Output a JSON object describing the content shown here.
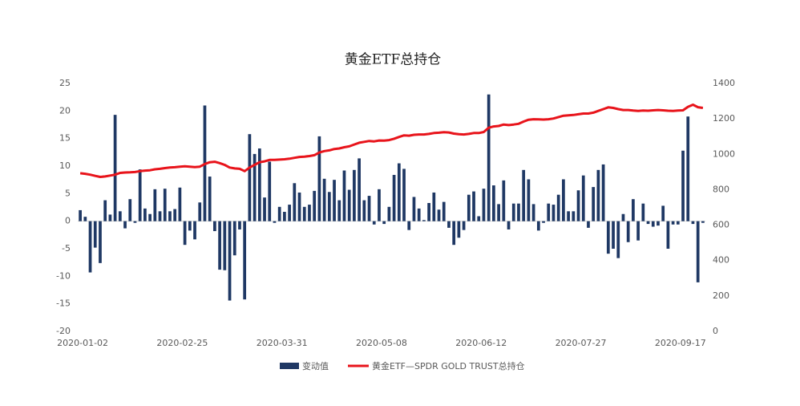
{
  "chart_data": {
    "type": "bar-line",
    "title": "黄金ETF总持仓",
    "categories": [
      "2020-01-02",
      null,
      null,
      null,
      null,
      null,
      null,
      null,
      null,
      null,
      null,
      null,
      null,
      null,
      null,
      null,
      null,
      null,
      null,
      null,
      "2020-02-25",
      null,
      null,
      null,
      null,
      null,
      null,
      null,
      null,
      null,
      null,
      null,
      null,
      null,
      null,
      null,
      null,
      null,
      null,
      null,
      "2020-03-31",
      null,
      null,
      null,
      null,
      null,
      null,
      null,
      null,
      null,
      null,
      null,
      null,
      null,
      null,
      null,
      null,
      null,
      null,
      null,
      "2020-05-08",
      null,
      null,
      null,
      null,
      null,
      null,
      null,
      null,
      null,
      null,
      null,
      null,
      null,
      null,
      null,
      null,
      null,
      null,
      null,
      "2020-06-12",
      null,
      null,
      null,
      null,
      null,
      null,
      null,
      null,
      null,
      null,
      null,
      null,
      null,
      null,
      null,
      null,
      null,
      null,
      null,
      "2020-07-27",
      null,
      null,
      null,
      null,
      null,
      null,
      null,
      null,
      null,
      null,
      null,
      null,
      null,
      null,
      null,
      null,
      null,
      null,
      null,
      "2020-09-17",
      null,
      null,
      null,
      null,
      null
    ],
    "series": [
      {
        "name": "变动值",
        "type": "bar",
        "color": "#1f3864",
        "values": [
          2,
          0.8,
          -9.3,
          -4.8,
          -7.6,
          3.8,
          1.2,
          19.3,
          1.8,
          -1.3,
          4,
          -0.3,
          9.4,
          2.3,
          1.3,
          5.8,
          1.8,
          5.9,
          1.8,
          2.2,
          6.1,
          -4.3,
          -1.7,
          -3.3,
          3.4,
          21,
          8.1,
          -1.8,
          -8.8,
          -8.9,
          -14.4,
          -6.2,
          -1.5,
          -14.2,
          15.8,
          12.2,
          13.2,
          4.3,
          10.8,
          -0.3,
          2.6,
          1.7,
          3,
          6.9,
          5.2,
          2.6,
          3,
          5.5,
          15.4,
          7.7,
          5.3,
          7.5,
          3.8,
          9.2,
          5.7,
          9.3,
          11.4,
          3.8,
          4.6,
          -0.6,
          5.8,
          -0.5,
          2.6,
          8.4,
          10.5,
          9.5,
          -1.6,
          4.4,
          2.3,
          0.2,
          3.3,
          5.2,
          2.1,
          3.5,
          -1.2,
          -4.3,
          -3,
          -1.6,
          4.8,
          5.4,
          0.9,
          5.9,
          23,
          6.5,
          3.1,
          7.4,
          -1.5,
          3.2,
          3.2,
          9.3,
          7.6,
          3.1,
          -1.7,
          -0.3,
          3.2,
          3,
          4.8,
          7.6,
          1.8,
          1.8,
          5.6,
          8.3,
          -1.2,
          6.2,
          9.3,
          10.3,
          -5.9,
          -5,
          -6.7,
          1.3,
          -3.8,
          4,
          -3.5,
          3.2,
          -0.5,
          -1,
          -0.8,
          2.8,
          -5,
          -0.6,
          -0.6,
          12.8,
          19,
          -0.5,
          -11.1,
          -0.3
        ]
      },
      {
        "name": "黄金ETF—SPDR GOLD TRUST总持仓",
        "type": "line",
        "axis": "y2",
        "color": "#e8141b",
        "values": [
          893,
          890,
          885,
          878,
          872,
          875,
          880,
          885,
          895,
          897,
          898,
          900,
          905,
          908,
          910,
          915,
          918,
          922,
          925,
          927,
          930,
          932,
          930,
          928,
          930,
          945,
          955,
          958,
          950,
          940,
          925,
          920,
          918,
          905,
          925,
          940,
          955,
          960,
          968,
          968,
          970,
          972,
          975,
          980,
          985,
          987,
          990,
          995,
          1010,
          1018,
          1022,
          1030,
          1033,
          1040,
          1045,
          1055,
          1065,
          1070,
          1075,
          1073,
          1078,
          1077,
          1080,
          1088,
          1098,
          1107,
          1105,
          1110,
          1112,
          1112,
          1115,
          1120,
          1122,
          1125,
          1123,
          1117,
          1113,
          1112,
          1115,
          1120,
          1120,
          1126,
          1150,
          1157,
          1160,
          1168,
          1165,
          1168,
          1172,
          1185,
          1195,
          1198,
          1197,
          1196,
          1198,
          1202,
          1210,
          1218,
          1220,
          1222,
          1226,
          1230,
          1230,
          1235,
          1245,
          1255,
          1265,
          1262,
          1255,
          1250,
          1250,
          1247,
          1245,
          1247,
          1246,
          1248,
          1250,
          1248,
          1246,
          1245,
          1247,
          1248,
          1268,
          1280,
          1266,
          1262
        ]
      }
    ],
    "ylim": [
      -20,
      25
    ],
    "yticks": [
      -20,
      -15,
      -10,
      -5,
      0,
      5,
      10,
      15,
      20,
      25
    ],
    "y2lim": [
      0,
      1400
    ],
    "y2ticks": [
      0,
      200,
      400,
      600,
      800,
      1000,
      1200,
      1400
    ],
    "grid": false,
    "legend": "bottom"
  }
}
